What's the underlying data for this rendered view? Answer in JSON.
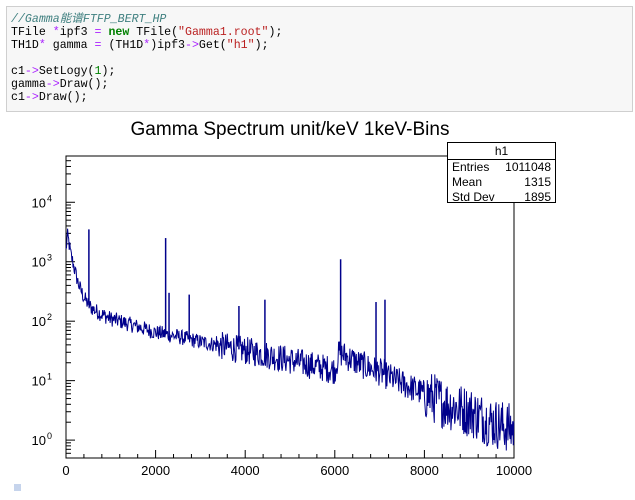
{
  "code": {
    "comment": "//Gamma能谱FTFP_BERT_HP",
    "line2": {
      "t1": "TFile ",
      "op1": "*",
      "t2": "ipf3 ",
      "op2": "=",
      "t3": " ",
      "kw": "new",
      "t4": " TFile(",
      "str": "\"Gamma1.root\"",
      "t5": ");"
    },
    "line3": {
      "t1": "TH1D",
      "op1": "*",
      "t2": " gamma ",
      "op2": "=",
      "t3": " (TH1D",
      "op3": "*",
      "t4": ")ipf3",
      "op4": "->",
      "t5": "Get(",
      "str": "\"h1\"",
      "t6": ");"
    },
    "line5": {
      "t1": "c1",
      "op1": "->",
      "t2": "SetLogy(",
      "num": "1",
      "t3": ");"
    },
    "line6": {
      "t1": "gamma",
      "op1": "->",
      "t2": "Draw();"
    },
    "line7": {
      "t1": "c1",
      "op1": "->",
      "t2": "Draw();"
    }
  },
  "stats_box": {
    "name": "h1",
    "rows": [
      {
        "label": "Entries",
        "value": "1011048"
      },
      {
        "label": "Mean",
        "value": "1315"
      },
      {
        "label": "Std Dev",
        "value": "1895"
      }
    ]
  },
  "chart_data": {
    "type": "line",
    "title": "Gamma Spectrum unit/keV 1keV-Bins",
    "xlabel": "",
    "ylabel": "",
    "xlim": [
      0,
      10000
    ],
    "ylim": [
      0.5,
      60000
    ],
    "log_y": true,
    "line_color": "#00008b",
    "x_ticks": [
      "0",
      "2000",
      "4000",
      "6000",
      "8000",
      "10000"
    ],
    "y_ticks": [
      {
        "base": "10",
        "exp": "0"
      },
      {
        "base": "10",
        "exp": "1"
      },
      {
        "base": "10",
        "exp": "2"
      },
      {
        "base": "10",
        "exp": "3"
      },
      {
        "base": "10",
        "exp": "4"
      }
    ],
    "series": [
      {
        "x": [
          0,
          30,
          60,
          100,
          150,
          200,
          250,
          300,
          400,
          500,
          600,
          800,
          1000,
          1200,
          1500,
          2000,
          2500,
          3000,
          3500,
          4000,
          4500,
          5000,
          5500,
          6000,
          6100,
          6500,
          7000,
          7500,
          8000,
          8500,
          9000,
          9500,
          10000
        ],
        "y": [
          1500,
          2800,
          2200,
          1400,
          1000,
          700,
          500,
          380,
          250,
          190,
          160,
          130,
          110,
          100,
          85,
          65,
          55,
          45,
          38,
          32,
          27,
          22,
          18,
          15,
          30,
          20,
          14,
          9,
          6,
          4,
          3,
          2,
          1.5
        ]
      }
    ],
    "peaks": [
      {
        "x": 511,
        "y": 3500
      },
      {
        "x": 2224,
        "y": 2500
      },
      {
        "x": 2300,
        "y": 300
      },
      {
        "x": 2750,
        "y": 280
      },
      {
        "x": 3860,
        "y": 180
      },
      {
        "x": 4440,
        "y": 230
      },
      {
        "x": 6130,
        "y": 1100
      },
      {
        "x": 6920,
        "y": 210
      },
      {
        "x": 7120,
        "y": 230
      }
    ]
  }
}
